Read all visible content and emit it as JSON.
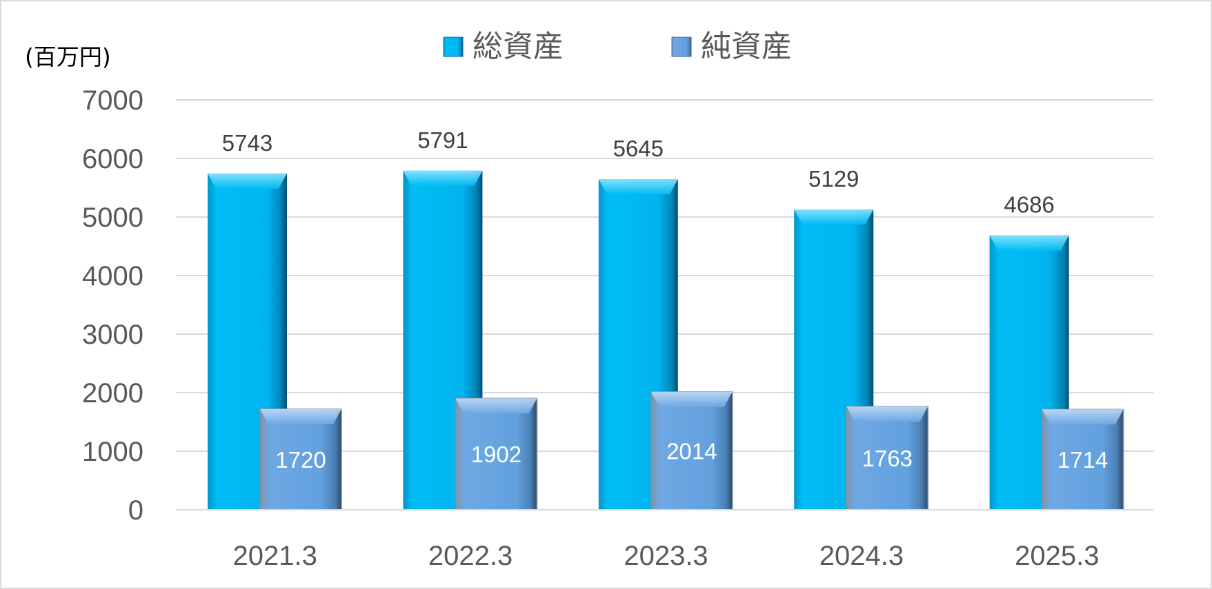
{
  "chart_data": {
    "type": "bar",
    "unit_label": "(百万円)",
    "categories": [
      "2021.3",
      "2022.3",
      "2023.3",
      "2024.3",
      "2025.3"
    ],
    "series": [
      {
        "name": "総資産",
        "values": [
          5743,
          5791,
          5645,
          5129,
          4686
        ],
        "color": "#00b4f0"
      },
      {
        "name": "純資産",
        "values": [
          1720,
          1902,
          2014,
          1763,
          1714
        ],
        "color": "#62a0de"
      }
    ],
    "ylim": [
      0,
      7000
    ],
    "yticks": [
      "0",
      "1000",
      "2000",
      "3000",
      "4000",
      "5000",
      "6000",
      "7000"
    ],
    "grid": true,
    "legend_position": "top-center"
  }
}
